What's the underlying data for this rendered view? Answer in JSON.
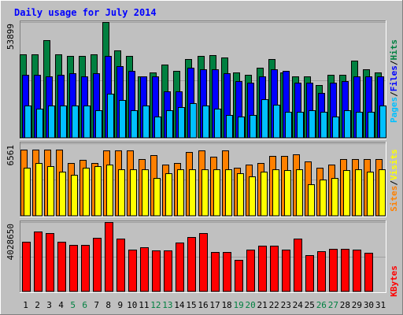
{
  "chart_data": {
    "type": "bar",
    "title": "Daily usage for July 2014",
    "categories": [
      "1",
      "2",
      "3",
      "4",
      "5",
      "6",
      "7",
      "8",
      "9",
      "10",
      "11",
      "12",
      "13",
      "14",
      "15",
      "16",
      "17",
      "18",
      "19",
      "20",
      "21",
      "22",
      "23",
      "24",
      "25",
      "26",
      "27",
      "28",
      "29",
      "30",
      "31"
    ],
    "weekend_days": [
      "5",
      "6",
      "12",
      "13",
      "19",
      "20",
      "26",
      "27"
    ],
    "panels": [
      {
        "name": "top",
        "ymax_label": "53899",
        "ymax": 53899,
        "legend": [
          {
            "text": "Pages",
            "color": "#00c0ff"
          },
          {
            "text": "Files",
            "color": "#0000ff"
          },
          {
            "text": "Hits",
            "color": "#008040"
          }
        ],
        "series": [
          {
            "name": "Hits",
            "color": "#008040",
            "values": [
              38700,
              38700,
              45500,
              38700,
              38000,
              38000,
              38700,
              53899,
              40700,
              38000,
              28500,
              30500,
              34200,
              31200,
              36500,
              38000,
              38500,
              37500,
              30500,
              29200,
              32700,
              36500,
              30500,
              28500,
              28500,
              24700,
              29200,
              29200,
              35800,
              31900,
              30500
            ]
          },
          {
            "name": "Files",
            "color": "#0000ff",
            "values": [
              29200,
              29200,
              28500,
              29200,
              29900,
              28500,
              29900,
              38000,
              33500,
              31200,
              28500,
              28500,
              21600,
              21600,
              32700,
              31900,
              31900,
              29900,
              26300,
              25500,
              28500,
              31900,
              31200,
              25500,
              25500,
              20800,
              25500,
              26300,
              28500,
              28500,
              28500
            ]
          },
          {
            "name": "Pages",
            "color": "#00c0ff",
            "values": [
              15000,
              13500,
              15000,
              15000,
              15000,
              15000,
              12700,
              20500,
              17500,
              12700,
              15000,
              10000,
              12700,
              14200,
              16000,
              15000,
              13500,
              10700,
              10000,
              10700,
              17900,
              15500,
              12000,
              12000,
              12700,
              12000,
              10000,
              12700,
              12000,
              12000,
              15000
            ]
          }
        ]
      },
      {
        "name": "middle",
        "ymax_label": "6561",
        "ymax": 6561,
        "legend": [
          {
            "text": "Sites",
            "color": "#ff8000"
          },
          {
            "text": "Visits",
            "color": "#ffff00"
          }
        ],
        "series": [
          {
            "name": "Sites",
            "color": "#ff8000",
            "values": [
              6010,
              6010,
              6010,
              6010,
              4780,
              5050,
              4780,
              5940,
              5940,
              5940,
              5110,
              5520,
              4640,
              4780,
              5800,
              5940,
              5380,
              5940,
              4370,
              4640,
              4780,
              5390,
              5390,
              5530,
              4910,
              4370,
              4640,
              5110,
              5110,
              5110,
              5110
            ]
          },
          {
            "name": "Visits",
            "color": "#ffff00",
            "values": [
              4370,
              4780,
              4500,
              3970,
              3700,
              4370,
              4500,
              4640,
              4240,
              4240,
              4240,
              3430,
              3840,
              4240,
              4240,
              4240,
              4240,
              4240,
              3830,
              3560,
              3970,
              4240,
              4110,
              4240,
              2880,
              3300,
              3430,
              4110,
              4240,
              3970,
              4240
            ]
          }
        ]
      },
      {
        "name": "bottom",
        "ymax_label": "4028650",
        "ymax": 4028650,
        "legend": [
          {
            "text": "KBytes",
            "color": "#ff0000"
          }
        ],
        "series": [
          {
            "name": "KBytes",
            "color": "#ff0000",
            "values": [
              2890000,
              3500000,
              3370000,
              2870000,
              2700000,
              2700000,
              3120000,
              4028650,
              3080000,
              2430000,
              2580000,
              2360000,
              2400000,
              2850000,
              3160000,
              3390000,
              2280000,
              2300000,
              1840000,
              2430000,
              2660000,
              2660000,
              2420000,
              3060000,
              2120000,
              2350000,
              2460000,
              2460000,
              2430000,
              2240000,
              0
            ]
          }
        ]
      }
    ]
  }
}
